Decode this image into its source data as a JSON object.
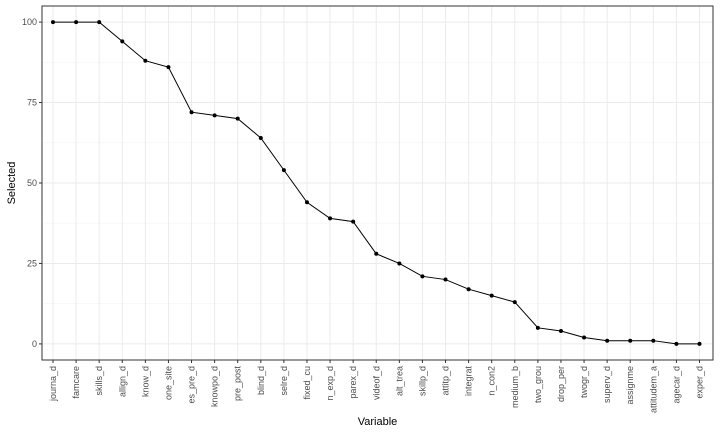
{
  "chart_data": {
    "type": "line",
    "xlabel": "Variable",
    "ylabel": "Selected",
    "categories": [
      "journa_d",
      "famcare",
      "skills_d",
      "allign_d",
      "know_d",
      "one_site",
      "es_pre_d",
      "knowpo_d",
      "pre_post",
      "blind_d",
      "selre_d",
      "fixed_cu",
      "n_exp_d",
      "parex_d",
      "videof_d",
      "alt_trea",
      "skillp_d",
      "attitp_d",
      "integrat",
      "n_con2",
      "medium_b",
      "two_grou",
      "drop_per",
      "twogr_d",
      "superv_d",
      "assignme",
      "attitudem_a",
      "agecar_d",
      "exper_d"
    ],
    "values": [
      100,
      100,
      100,
      94,
      88,
      86,
      72,
      71,
      70,
      64,
      54,
      44,
      39,
      38,
      28,
      25,
      21,
      20,
      17,
      15,
      13,
      5,
      4,
      2,
      1,
      1,
      1,
      0,
      0
    ],
    "ylim": [
      -5,
      105
    ],
    "yticks": [
      0,
      25,
      50,
      75,
      100
    ],
    "grid": true,
    "colors": {
      "line": "#000000",
      "point": "#000000",
      "panel_border": "#333333",
      "grid_major": "#ebebeb",
      "grid_minor": "#f5f5f5"
    }
  }
}
